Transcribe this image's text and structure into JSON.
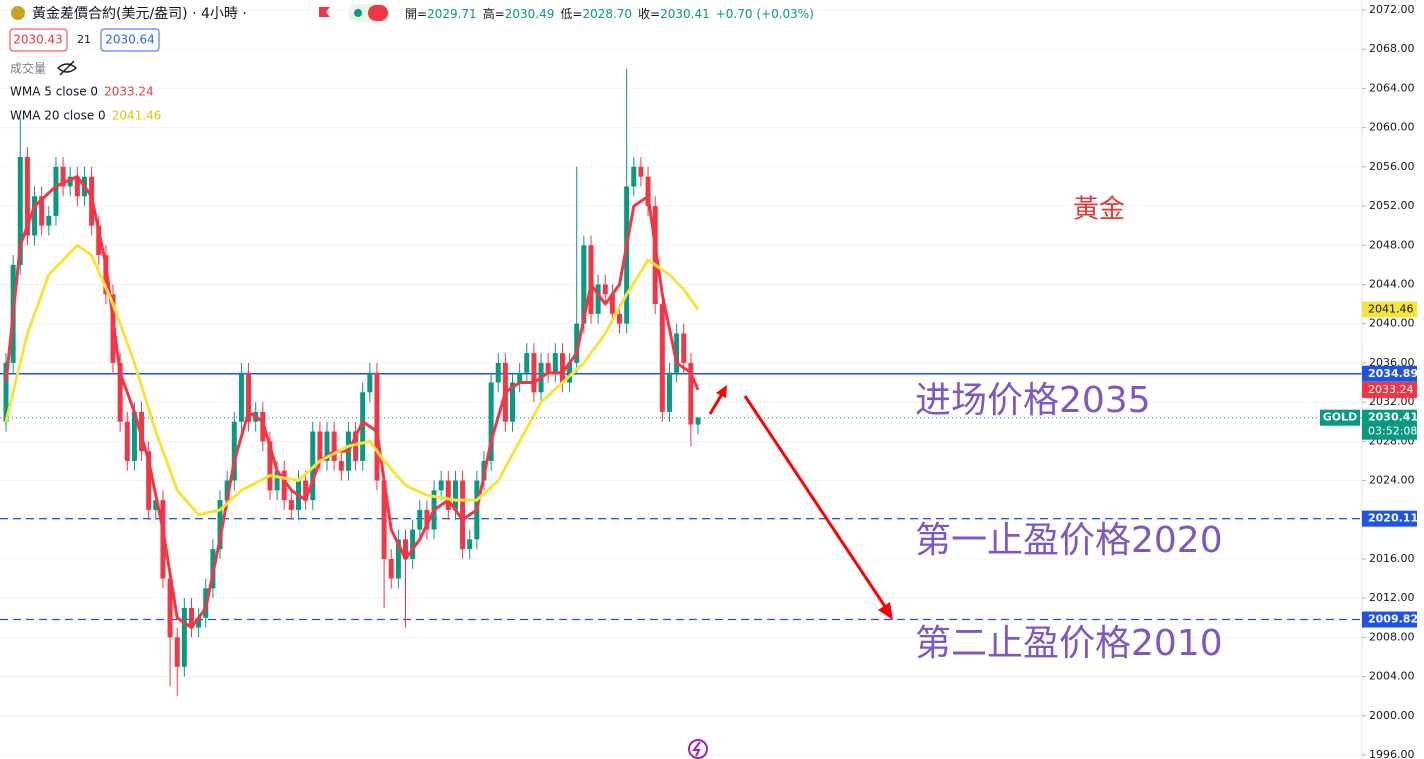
{
  "chart_data": {
    "type": "candlestick",
    "symbol_title": "黃金差價合約(美元/盎司) · 4小時 ·",
    "ohlc_header": [
      {
        "label": "開=",
        "value": "2029.71"
      },
      {
        "label": "高=",
        "value": "2030.49"
      },
      {
        "label": "低=",
        "value": "2028.70"
      },
      {
        "label": "收=",
        "value": "2030.41"
      }
    ],
    "change": "+0.70 (+0.03%)",
    "bid": "2030.43",
    "spread": "21",
    "ask": "2030.64",
    "volume_label": "成交量",
    "open": [
      2030,
      2036,
      2046,
      2057,
      2049,
      2053,
      2050,
      2051,
      2056,
      2054,
      2055,
      2053,
      2055,
      2050,
      2047,
      2043,
      2036,
      2030,
      2026,
      2031,
      2027,
      2021,
      2022,
      2014,
      2008,
      2005,
      2011,
      2009,
      2010,
      2013,
      2017,
      2022,
      2024,
      2030,
      2035,
      2030,
      2031,
      2028,
      2023,
      2025,
      2022,
      2021,
      2024,
      2022,
      2029,
      2026,
      2029,
      2026,
      2025,
      2029,
      2026,
      2033,
      2035,
      2024,
      2016,
      2014,
      2018,
      2016,
      2019,
      2021,
      2019,
      2023,
      2024,
      2021,
      2024,
      2017,
      2018,
      2024,
      2026,
      2034,
      2036,
      2030,
      2034,
      2035,
      2037,
      2033,
      2036,
      2035,
      2037,
      2034,
      2036,
      2040,
      2048,
      2041,
      2044,
      2043,
      2041,
      2040,
      2054,
      2056,
      2055,
      2052,
      2042,
      2031,
      2035,
      2039,
      2036,
      2029.71
    ],
    "high": [
      2037,
      2047,
      2061,
      2058,
      2054,
      2054,
      2052,
      2057,
      2057,
      2056,
      2056,
      2056,
      2056,
      2051,
      2048,
      2044,
      2037,
      2031,
      2032,
      2032,
      2028,
      2023,
      2023,
      2015,
      2009,
      2012,
      2012,
      2011,
      2014,
      2018,
      2023,
      2025,
      2031,
      2036,
      2036,
      2032,
      2032,
      2029,
      2026,
      2026,
      2023,
      2025,
      2025,
      2030,
      2030,
      2030,
      2030,
      2027,
      2030,
      2030,
      2034,
      2036,
      2036,
      2025,
      2017,
      2019,
      2019,
      2020,
      2022,
      2022,
      2024,
      2025,
      2025,
      2025,
      2025,
      2019,
      2025,
      2027,
      2035,
      2037,
      2037,
      2035,
      2036,
      2038,
      2038,
      2037,
      2037,
      2038,
      2038,
      2037,
      2056,
      2049,
      2049,
      2045,
      2045,
      2044,
      2042,
      2066,
      2057,
      2057,
      2056,
      2053,
      2043,
      2036,
      2040,
      2040,
      2037,
      2030.49
    ],
    "low": [
      2029,
      2035,
      2045,
      2048,
      2048,
      2049,
      2049,
      2050,
      2053,
      2053,
      2052,
      2052,
      2049,
      2046,
      2042,
      2035,
      2029,
      2025,
      2025,
      2026,
      2020,
      2020,
      2013,
      2003,
      2002,
      2004,
      2008,
      2008,
      2009,
      2012,
      2016,
      2021,
      2023,
      2029,
      2029,
      2029,
      2027,
      2022,
      2022,
      2021,
      2020,
      2020,
      2021,
      2021,
      2025,
      2025,
      2025,
      2024,
      2024,
      2025,
      2025,
      2032,
      2023,
      2011,
      2013,
      2013,
      2009,
      2015,
      2018,
      2018,
      2018,
      2022,
      2020,
      2020,
      2016,
      2016,
      2017,
      2023,
      2025,
      2033,
      2029,
      2029,
      2033,
      2034,
      2032,
      2032,
      2034,
      2034,
      2033,
      2033,
      2035,
      2039,
      2040,
      2040,
      2042,
      2040,
      2039,
      2039,
      2053,
      2054,
      2051,
      2041,
      2030,
      2030,
      2034,
      2035,
      2027.5,
      2028.7
    ],
    "close": [
      2036,
      2046,
      2057,
      2049,
      2053,
      2050,
      2051,
      2056,
      2054,
      2055,
      2053,
      2055,
      2050,
      2047,
      2043,
      2036,
      2030,
      2026,
      2031,
      2027,
      2021,
      2022,
      2014,
      2008,
      2005,
      2011,
      2009,
      2010,
      2013,
      2017,
      2022,
      2024,
      2030,
      2035,
      2030,
      2031,
      2028,
      2023,
      2025,
      2022,
      2021,
      2024,
      2022,
      2029,
      2026,
      2029,
      2026,
      2025,
      2029,
      2026,
      2033,
      2035,
      2024,
      2016,
      2014,
      2018,
      2016,
      2019,
      2021,
      2019,
      2023,
      2024,
      2021,
      2024,
      2017,
      2018,
      2024,
      2026,
      2034,
      2036,
      2030,
      2034,
      2035,
      2037,
      2033,
      2036,
      2035,
      2037,
      2034,
      2036,
      2040,
      2048,
      2041,
      2044,
      2043,
      2041,
      2040,
      2054,
      2056,
      2055,
      2052,
      2042,
      2031,
      2035,
      2039,
      2036,
      2029.71,
      2030.41
    ],
    "up_color": "#089981",
    "down_color": "#f23645",
    "series": [
      {
        "name": "WMA 5 close 0",
        "color": "#f23645",
        "x": [
          0,
          2,
          4,
          7,
          10,
          12,
          14,
          16,
          18,
          20,
          22,
          24,
          26,
          28,
          30,
          32,
          34,
          36,
          38,
          40,
          42,
          44,
          46,
          48,
          50,
          52,
          54,
          56,
          58,
          60,
          62,
          64,
          66,
          68,
          70,
          72,
          74,
          76,
          78,
          80,
          82,
          84,
          86,
          88,
          90,
          92,
          94,
          96,
          97
        ],
        "values": [
          2034,
          2048,
          2052,
          2054,
          2055,
          2053,
          2046,
          2035,
          2031,
          2026,
          2019,
          2010,
          2009,
          2011,
          2018,
          2026,
          2031,
          2030,
          2025,
          2023,
          2022,
          2026,
          2027,
          2027,
          2030,
          2029,
          2019,
          2016,
          2018,
          2021,
          2022,
          2020,
          2021,
          2028,
          2033,
          2034,
          2034,
          2035,
          2035,
          2037,
          2044,
          2042,
          2044,
          2052,
          2053,
          2043,
          2036,
          2035,
          2033.24
        ]
      },
      {
        "name": "WMA 20 close 0",
        "color": "#f7e43a",
        "x": [
          0,
          3,
          6,
          10,
          12,
          15,
          18,
          21,
          24,
          27,
          30,
          33,
          37,
          41,
          44,
          48,
          51,
          53,
          56,
          59,
          63,
          66,
          69,
          72,
          75,
          78,
          81,
          84,
          87,
          90,
          93,
          95,
          97
        ],
        "values": [
          2030,
          2039,
          2045,
          2048,
          2047,
          2042,
          2036,
          2029,
          2023,
          2020.5,
          2021,
          2023,
          2024.5,
          2024,
          2026,
          2027.5,
          2028,
          2026,
          2023.5,
          2022.5,
          2022,
          2022,
          2024,
          2028,
          2032,
          2034,
          2036,
          2039,
          2043,
          2046.5,
          2045,
          2043.5,
          2041.46
        ]
      }
    ],
    "ylim": [
      1996,
      2072
    ],
    "yticks": [
      {
        "value": 1996,
        "label": "1996.00"
      },
      {
        "value": 2000,
        "label": "2000.00"
      },
      {
        "value": 2004,
        "label": "2004.00"
      },
      {
        "value": 2008,
        "label": "2008.00"
      },
      {
        "value": 2012,
        "label": "2012.00"
      },
      {
        "value": 2016,
        "label": "2016.00"
      },
      {
        "value": 2020,
        "label": "2020.00"
      },
      {
        "value": 2024,
        "label": "2024.00"
      },
      {
        "value": 2028,
        "label": "2028.00"
      },
      {
        "value": 2032,
        "label": "2032.00"
      },
      {
        "value": 2036,
        "label": "2036.00"
      },
      {
        "value": 2040,
        "label": "2040.00"
      },
      {
        "value": 2044,
        "label": "2044.00"
      },
      {
        "value": 2048,
        "label": "2048.00"
      },
      {
        "value": 2052,
        "label": "2052.00"
      },
      {
        "value": 2056,
        "label": "2056.00"
      },
      {
        "value": 2060,
        "label": "2060.00"
      },
      {
        "value": 2064,
        "label": "2064.00"
      },
      {
        "value": 2068,
        "label": "2068.00"
      },
      {
        "value": 2072,
        "label": "2072.00"
      }
    ],
    "grid": true,
    "hlines": [
      {
        "value": 2034.89,
        "color": "#1e53e5",
        "style": "solid"
      },
      {
        "value": 2020.11,
        "color": "#1e53e5",
        "style": "dashed"
      },
      {
        "value": 2009.82,
        "color": "#1e53e5",
        "style": "dashed"
      }
    ],
    "price_line_color": "#089981",
    "symbol": "GOLD",
    "countdown": "03:52:08",
    "annotations": [
      {
        "text": "黃金",
        "color": "#e53935"
      },
      {
        "text": "进场价格2035",
        "color": "#7e57c2"
      },
      {
        "text": "第一止盈价格2020",
        "color": "#7e57c2"
      },
      {
        "text": "第二止盈价格2010",
        "color": "#7e57c2"
      }
    ]
  }
}
